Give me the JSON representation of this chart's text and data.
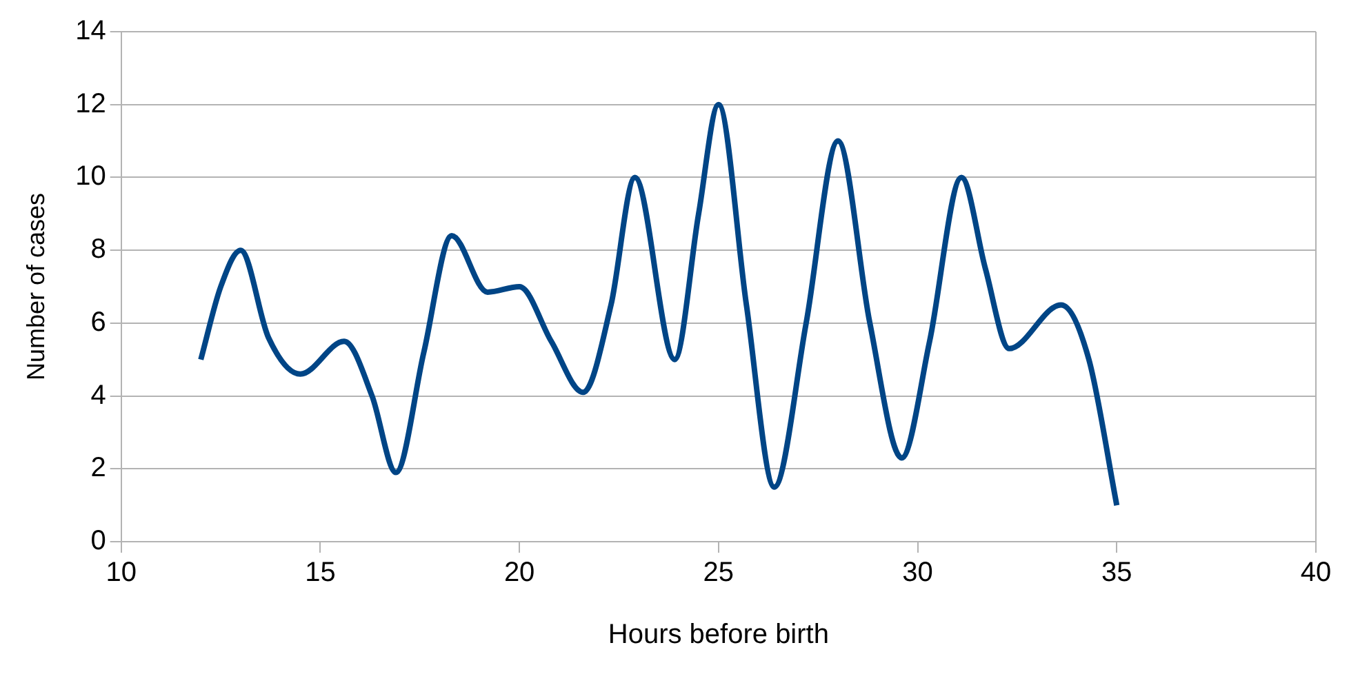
{
  "chart_data": {
    "type": "line",
    "xlabel": "Hours before birth",
    "ylabel": "Number of cases",
    "series": [
      {
        "color": "#004586",
        "x": [
          12,
          12.5,
          13,
          13.7,
          14.5,
          15.6,
          16.3,
          16.9,
          17.6,
          18.3,
          19.2,
          20,
          20.8,
          21.6,
          22.3,
          22.9,
          23.9,
          24.5,
          25,
          25.7,
          26.4,
          27.2,
          28,
          28.8,
          29.6,
          30.3,
          31.1,
          31.7,
          32.3,
          33.6,
          34.3,
          35
        ],
        "values": [
          5,
          7,
          8,
          5.6,
          4.6,
          5.5,
          4,
          1.9,
          5.2,
          8.4,
          6.85,
          7,
          5.5,
          4.1,
          6.5,
          10,
          5,
          9,
          12,
          6.5,
          1.5,
          6,
          11,
          6,
          2.3,
          5.5,
          10,
          7.5,
          5.3,
          6.5,
          5,
          1
        ]
      }
    ],
    "xlim": [
      10,
      40
    ],
    "xticks": [
      10,
      15,
      20,
      25,
      30,
      35,
      40
    ],
    "ylim": [
      0,
      14
    ],
    "yticks": [
      0,
      2,
      4,
      6,
      8,
      10,
      12,
      14
    ],
    "grid": "y",
    "legend": false,
    "marker": "none",
    "line_style": "solid"
  }
}
